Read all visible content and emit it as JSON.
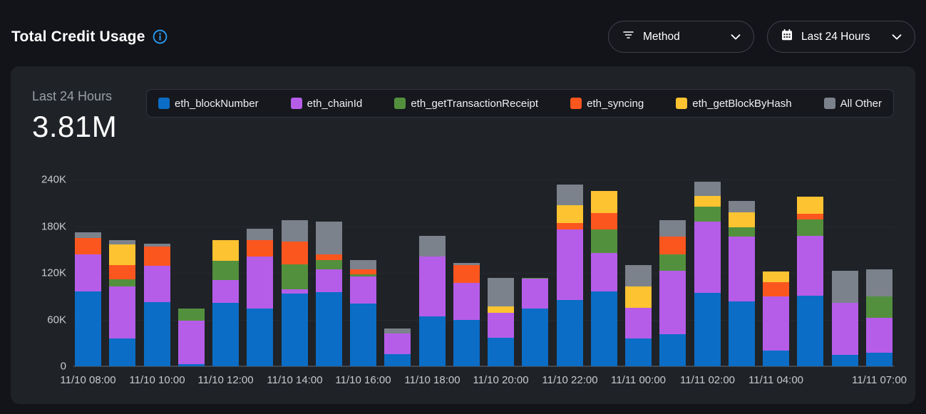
{
  "header": {
    "title": "Total Credit Usage"
  },
  "filters": {
    "method_button": {
      "label": "Method",
      "icon": "filter-icon"
    },
    "time_range_button": {
      "label": "Last 24 Hours",
      "icon": "calendar-icon"
    }
  },
  "summary": {
    "period_label": "Last 24 Hours",
    "total_value": "3.81M"
  },
  "colors": {
    "accent_blue": "#2b9df4",
    "page_bg": "#131419",
    "card_bg": "#1f2227"
  },
  "chart_data": {
    "type": "bar",
    "stacked": true,
    "title": "Total Credit Usage - Last 24 Hours",
    "values_unit": "thousands of credits",
    "ylim": [
      0,
      240
    ],
    "grid": true,
    "legend_position": "top",
    "y_tick_labels": [
      "240K",
      "180K",
      "120K",
      "60K",
      "0"
    ],
    "categories": [
      "11/10 08:00",
      "11/10 09:00",
      "11/10 10:00",
      "11/10 11:00",
      "11/10 12:00",
      "11/10 13:00",
      "11/10 14:00",
      "11/10 15:00",
      "11/10 16:00",
      "11/10 17:00",
      "11/10 18:00",
      "11/10 19:00",
      "11/10 20:00",
      "11/10 21:00",
      "11/10 22:00",
      "11/10 23:00",
      "11/11 00:00",
      "11/11 01:00",
      "11/11 02:00",
      "11/11 03:00",
      "11/11 04:00",
      "11/11 05:00",
      "11/11 06:00",
      "11/11 07:00"
    ],
    "x_tick_labels": [
      "11/10 08:00",
      "11/10 10:00",
      "11/10 12:00",
      "11/10 14:00",
      "11/10 16:00",
      "11/10 18:00",
      "11/10 20:00",
      "11/10 22:00",
      "11/11 00:00",
      "11/11 02:00",
      "11/11 04:00",
      "11/11 07:00"
    ],
    "x_tick_bar_indices": [
      0,
      2,
      4,
      6,
      8,
      10,
      12,
      14,
      16,
      18,
      20,
      23
    ],
    "series": [
      {
        "name": "eth_blockNumber",
        "color": "#0b6dc5",
        "values": [
          96.6,
          35.5,
          82.9,
          3.0,
          81.4,
          74.6,
          93.6,
          95.1,
          80.4,
          15.6,
          64.5,
          59.9,
          37.0,
          74.6,
          85.3,
          96.6,
          35.5,
          41.6,
          94.2,
          83.5,
          20.2,
          91.1,
          14.7,
          17.2
        ]
      },
      {
        "name": "eth_chainId",
        "color": "#b55de9",
        "values": [
          47.4,
          67.3,
          46.5,
          55.4,
          29.0,
          66.4,
          5.8,
          29.7,
          35.2,
          26.6,
          76.5,
          47.4,
          32.1,
          38.2,
          90.2,
          49.5,
          39.7,
          81.0,
          92.0,
          83.5,
          69.7,
          76.5,
          66.7,
          45.2
        ]
      },
      {
        "name": "eth_getTransactionReceipt",
        "color": "#53903d",
        "values": [
          0,
          9.2,
          0,
          15.9,
          25.1,
          0,
          31.2,
          11.6,
          3.0,
          0,
          0,
          0,
          0,
          1.0,
          0,
          29.4,
          0,
          21.4,
          19.0,
          11.6,
          0,
          21.4,
          0,
          27.5
        ]
      },
      {
        "name": "eth_syncing",
        "color": "#fc561f",
        "values": [
          21.0,
          18.4,
          24.5,
          0,
          0,
          21.0,
          29.4,
          7.6,
          6.1,
          0,
          0,
          23.0,
          0,
          0,
          8.3,
          21.5,
          0,
          22.3,
          0,
          0,
          18.4,
          7.0,
          0,
          0
        ]
      },
      {
        "name": "eth_getBlockByHash",
        "color": "#fdc331",
        "values": [
          0,
          26.0,
          0,
          0,
          26.9,
          0,
          0,
          0,
          0,
          0,
          0,
          0,
          8.2,
          0,
          22.9,
          28.0,
          27.6,
          0,
          13.8,
          18.9,
          13.4,
          22.0,
          0,
          0
        ]
      },
      {
        "name": "All Other",
        "color": "#7b828c",
        "values": [
          7.2,
          6.1,
          3.3,
          0,
          0,
          14.8,
          27.5,
          42.0,
          11.7,
          6.1,
          26.6,
          2.4,
          36.7,
          0,
          26.6,
          0,
          27.5,
          21.1,
          18.3,
          15.3,
          0,
          0,
          41.2,
          35.0
        ]
      }
    ]
  }
}
